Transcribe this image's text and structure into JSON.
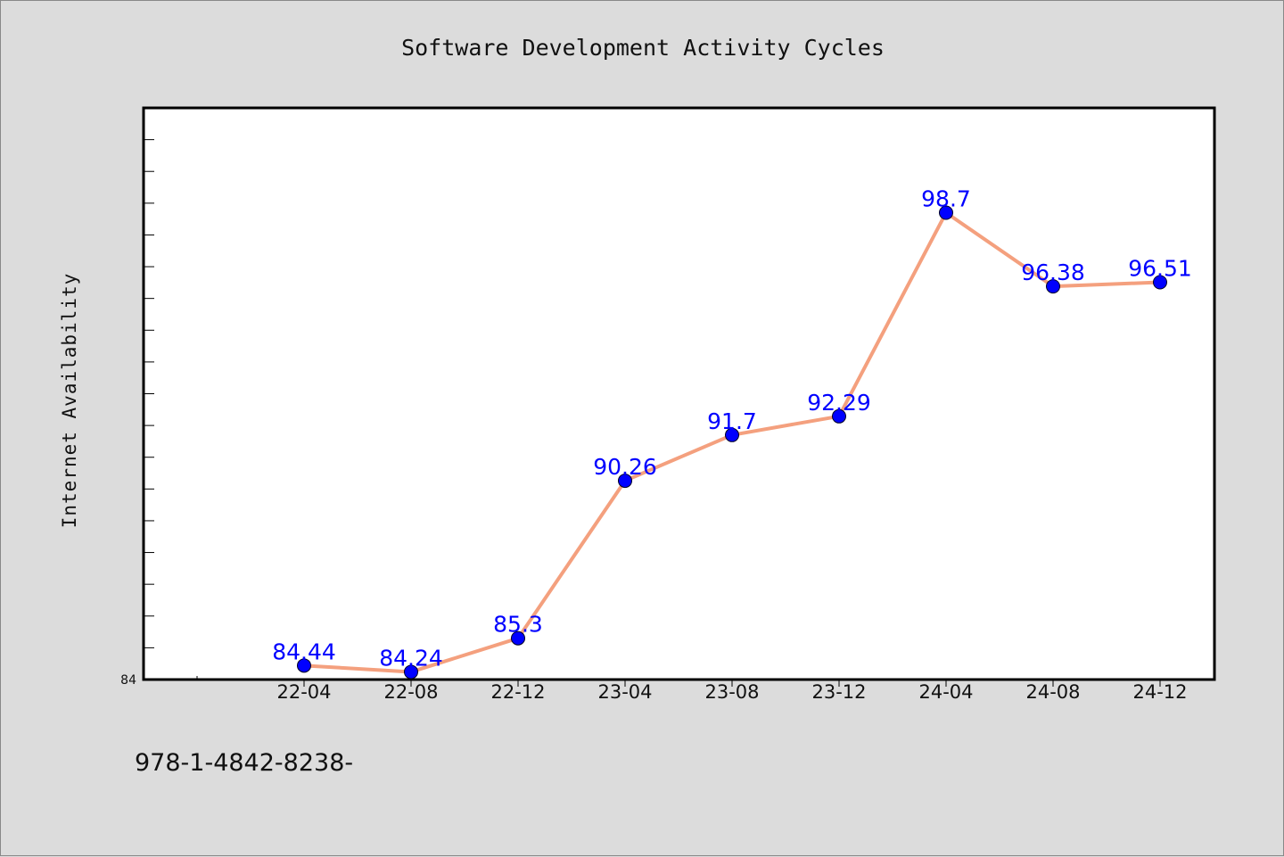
{
  "chart_data": {
    "type": "line",
    "title": "Software Development Activity Cycles",
    "xlabel": "",
    "ylabel": "Internet Availability",
    "categories": [
      "22-04",
      "22-08",
      "22-12",
      "23-04",
      "23-08",
      "23-12",
      "24-04",
      "24-08",
      "24-12"
    ],
    "series": [
      {
        "values": [
          84.44,
          84.24,
          85.3,
          90.26,
          91.7,
          92.29,
          98.7,
          96.38,
          96.51
        ],
        "line_color": "#f4a07e",
        "marker_color": "#0000ff"
      }
    ],
    "data_labels": [
      "84.44",
      "84.24",
      "85.3",
      "90.26",
      "91.7",
      "92.29",
      "98.7",
      "96.38",
      "96.51"
    ],
    "y_tick_labels": [
      "84"
    ],
    "ylim": [
      84,
      102
    ],
    "grid": false,
    "legend": "none"
  },
  "footer": {
    "text": "978-1-4842-8238-"
  },
  "colors": {
    "background": "#dcdcdc",
    "plot_background": "#ffffff",
    "line": "#f4a07e",
    "marker": "#0000ff",
    "label": "#0000ff"
  }
}
